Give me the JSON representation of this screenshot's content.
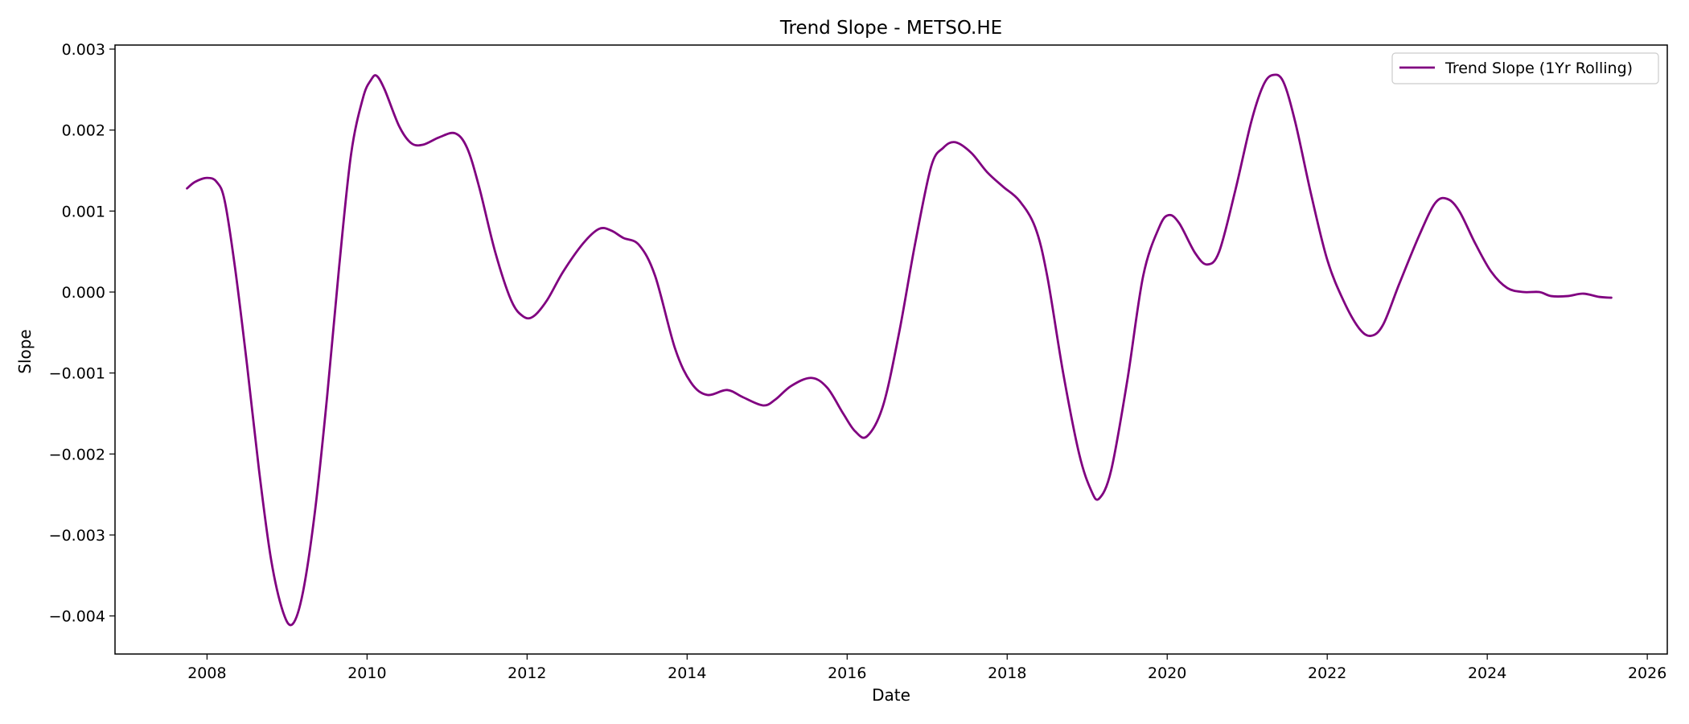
{
  "chart_data": {
    "type": "line",
    "title": "Trend Slope - METSO.HE",
    "xlabel": "Date",
    "ylabel": "Slope",
    "xlim": [
      2006.85,
      2026.25
    ],
    "ylim": [
      -0.00447,
      0.00305
    ],
    "x_ticks": [
      2008,
      2010,
      2012,
      2014,
      2016,
      2018,
      2020,
      2022,
      2024,
      2026
    ],
    "x_tick_labels": [
      "2008",
      "2010",
      "2012",
      "2014",
      "2016",
      "2018",
      "2020",
      "2022",
      "2024",
      "2026"
    ],
    "y_ticks": [
      0.003,
      0.002,
      0.001,
      0.0,
      -0.001,
      -0.002,
      -0.003,
      -0.004
    ],
    "y_tick_labels": [
      "0.003",
      "0.002",
      "0.001",
      "0.000",
      "−0.001",
      "−0.002",
      "−0.003",
      "−0.004"
    ],
    "grid": false,
    "legend_position": "top-right",
    "series": [
      {
        "name": "Trend Slope (1Yr Rolling)",
        "color": "#800080",
        "points": [
          [
            2007.75,
            0.00128
          ],
          [
            2007.85,
            0.00136
          ],
          [
            2008.0,
            0.00141
          ],
          [
            2008.12,
            0.00136
          ],
          [
            2008.22,
            0.00113
          ],
          [
            2008.35,
            0.0003
          ],
          [
            2008.5,
            -0.0009
          ],
          [
            2008.65,
            -0.0022
          ],
          [
            2008.8,
            -0.0033
          ],
          [
            2008.95,
            -0.00395
          ],
          [
            2009.07,
            -0.0041
          ],
          [
            2009.2,
            -0.0037
          ],
          [
            2009.35,
            -0.0027
          ],
          [
            2009.5,
            -0.0013
          ],
          [
            2009.65,
            0.0003
          ],
          [
            2009.8,
            0.0017
          ],
          [
            2009.95,
            0.0024
          ],
          [
            2010.05,
            0.00262
          ],
          [
            2010.12,
            0.00267
          ],
          [
            2010.22,
            0.0025
          ],
          [
            2010.4,
            0.00205
          ],
          [
            2010.55,
            0.00184
          ],
          [
            2010.7,
            0.00182
          ],
          [
            2010.9,
            0.00191
          ],
          [
            2011.1,
            0.00196
          ],
          [
            2011.25,
            0.00178
          ],
          [
            2011.4,
            0.0013
          ],
          [
            2011.6,
            0.0005
          ],
          [
            2011.8,
            -0.0001
          ],
          [
            2011.95,
            -0.0003
          ],
          [
            2012.08,
            -0.0003
          ],
          [
            2012.25,
            -0.0001
          ],
          [
            2012.45,
            0.00025
          ],
          [
            2012.7,
            0.0006
          ],
          [
            2012.9,
            0.00078
          ],
          [
            2013.05,
            0.00076
          ],
          [
            2013.2,
            0.00067
          ],
          [
            2013.4,
            0.00058
          ],
          [
            2013.6,
            0.0002
          ],
          [
            2013.85,
            -0.0007
          ],
          [
            2014.05,
            -0.00112
          ],
          [
            2014.25,
            -0.00127
          ],
          [
            2014.5,
            -0.00121
          ],
          [
            2014.7,
            -0.0013
          ],
          [
            2014.95,
            -0.0014
          ],
          [
            2015.1,
            -0.00133
          ],
          [
            2015.3,
            -0.00116
          ],
          [
            2015.55,
            -0.00106
          ],
          [
            2015.75,
            -0.00118
          ],
          [
            2015.95,
            -0.0015
          ],
          [
            2016.1,
            -0.00172
          ],
          [
            2016.25,
            -0.00178
          ],
          [
            2016.45,
            -0.0014
          ],
          [
            2016.65,
            -0.0005
          ],
          [
            2016.85,
            0.0006
          ],
          [
            2017.05,
            0.00155
          ],
          [
            2017.2,
            0.00178
          ],
          [
            2017.35,
            0.00185
          ],
          [
            2017.55,
            0.00172
          ],
          [
            2017.75,
            0.00148
          ],
          [
            2017.95,
            0.0013
          ],
          [
            2018.15,
            0.00113
          ],
          [
            2018.35,
            0.0008
          ],
          [
            2018.5,
            0.0002
          ],
          [
            2018.7,
            -0.001
          ],
          [
            2018.9,
            -0.002
          ],
          [
            2019.05,
            -0.00245
          ],
          [
            2019.15,
            -0.00255
          ],
          [
            2019.3,
            -0.0022
          ],
          [
            2019.5,
            -0.0011
          ],
          [
            2019.7,
            0.0002
          ],
          [
            2019.9,
            0.0008
          ],
          [
            2020.02,
            0.00095
          ],
          [
            2020.15,
            0.00085
          ],
          [
            2020.35,
            0.00048
          ],
          [
            2020.5,
            0.00034
          ],
          [
            2020.65,
            0.0005
          ],
          [
            2020.85,
            0.00125
          ],
          [
            2021.05,
            0.0021
          ],
          [
            2021.2,
            0.00255
          ],
          [
            2021.32,
            0.00268
          ],
          [
            2021.45,
            0.0026
          ],
          [
            2021.6,
            0.0021
          ],
          [
            2021.8,
            0.0012
          ],
          [
            2022.0,
            0.0004
          ],
          [
            2022.2,
            -0.0001
          ],
          [
            2022.4,
            -0.00045
          ],
          [
            2022.55,
            -0.00054
          ],
          [
            2022.7,
            -0.0004
          ],
          [
            2022.9,
            0.0001
          ],
          [
            2023.15,
            0.0007
          ],
          [
            2023.35,
            0.0011
          ],
          [
            2023.5,
            0.00115
          ],
          [
            2023.65,
            0.001
          ],
          [
            2023.85,
            0.0006
          ],
          [
            2024.05,
            0.00025
          ],
          [
            2024.25,
            5e-05
          ],
          [
            2024.45,
            0.0
          ],
          [
            2024.65,
            -0.0
          ],
          [
            2024.8,
            -5e-05
          ],
          [
            2025.0,
            -5e-05
          ],
          [
            2025.2,
            -2e-05
          ],
          [
            2025.4,
            -6e-05
          ],
          [
            2025.55,
            -7e-05
          ]
        ]
      }
    ]
  }
}
